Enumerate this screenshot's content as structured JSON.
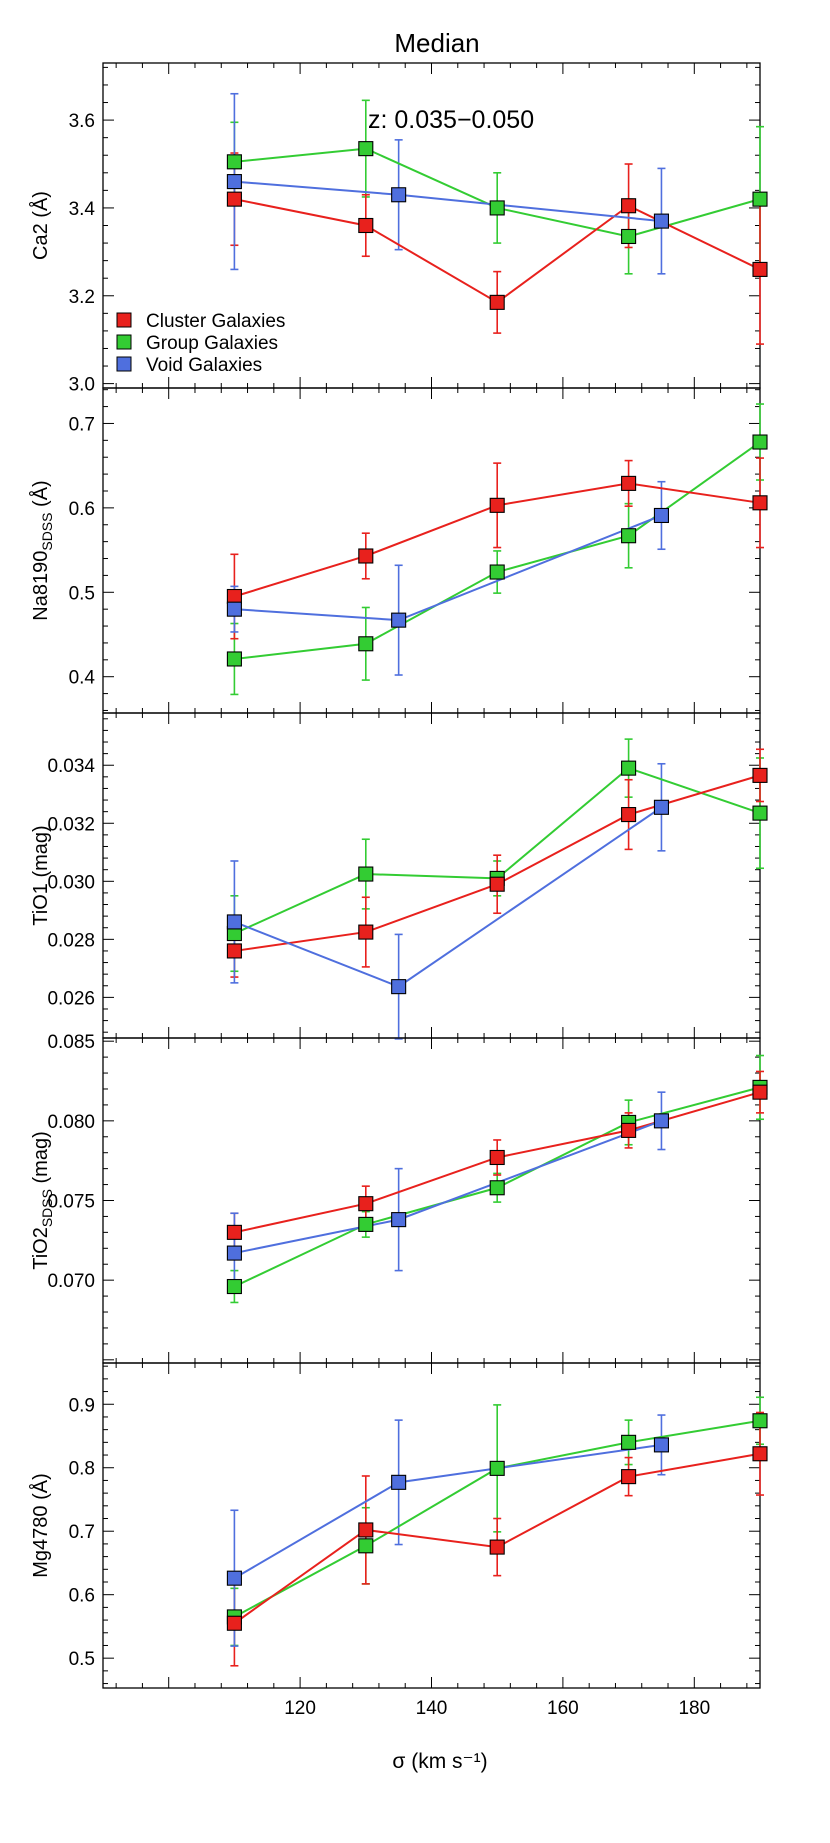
{
  "figure": {
    "title": "Median",
    "annotation": "z: 0.035−0.050",
    "xlabel": "σ (km s⁻¹)"
  },
  "legend": {
    "placement": "lower-left of top panel",
    "items": [
      {
        "label": "Cluster Galaxies",
        "color": "#e8211d"
      },
      {
        "label": "Group Galaxies",
        "color": "#33cc33"
      },
      {
        "label": "Void Galaxies",
        "color": "#4f6fde"
      }
    ]
  },
  "colors": {
    "cluster": "#e8211d",
    "group": "#33cc33",
    "void": "#4f6fde",
    "axis": "#000000"
  },
  "chart_data": [
    {
      "type": "line",
      "ylabel": "Ca2 (Å)",
      "xlim": [
        90,
        190
      ],
      "ylim": [
        2.99,
        3.73
      ],
      "yticks": [
        "3.0",
        "3.2",
        "3.4",
        "3.6"
      ],
      "xticks": [
        "120",
        "140",
        "160",
        "180"
      ],
      "show_xtick_labels": false,
      "series": [
        {
          "name": "Cluster Galaxies",
          "key": "cluster",
          "x": [
            110,
            130,
            150,
            170,
            190
          ],
          "y": [
            3.42,
            3.36,
            3.185,
            3.405,
            3.26
          ],
          "err": [
            0.105,
            0.07,
            0.07,
            0.095,
            0.17
          ]
        },
        {
          "name": "Group Galaxies",
          "key": "group",
          "x": [
            110,
            130,
            150,
            170,
            190
          ],
          "y": [
            3.505,
            3.535,
            3.4,
            3.335,
            3.42
          ],
          "err": [
            0.09,
            0.11,
            0.08,
            0.085,
            0.165
          ]
        },
        {
          "name": "Void Galaxies",
          "key": "void",
          "x": [
            110,
            135,
            175
          ],
          "y": [
            3.46,
            3.43,
            3.37
          ],
          "err": [
            0.2,
            0.125,
            0.12
          ]
        }
      ]
    },
    {
      "type": "line",
      "ylabel": "Na8190SDSS (Å)",
      "ylabel_main": "Na8190",
      "ylabel_sub": "SDSS",
      "ylabel_unit": " (Å)",
      "xlim": [
        90,
        190
      ],
      "ylim": [
        0.357,
        0.742
      ],
      "yticks": [
        "0.4",
        "0.5",
        "0.6",
        "0.7"
      ],
      "xticks": [
        "120",
        "140",
        "160",
        "180"
      ],
      "show_xtick_labels": false,
      "series": [
        {
          "name": "Cluster Galaxies",
          "key": "cluster",
          "x": [
            110,
            130,
            150,
            170,
            190
          ],
          "y": [
            0.495,
            0.543,
            0.603,
            0.629,
            0.606
          ],
          "err": [
            0.05,
            0.027,
            0.05,
            0.027,
            0.053
          ]
        },
        {
          "name": "Group Galaxies",
          "key": "group",
          "x": [
            110,
            130,
            150,
            170,
            190
          ],
          "y": [
            0.421,
            0.439,
            0.524,
            0.567,
            0.678
          ],
          "err": [
            0.042,
            0.043,
            0.025,
            0.038,
            0.045
          ]
        },
        {
          "name": "Void Galaxies",
          "key": "void",
          "x": [
            110,
            135,
            175
          ],
          "y": [
            0.48,
            0.467,
            0.591
          ],
          "err": [
            0.027,
            0.065,
            0.04
          ]
        }
      ]
    },
    {
      "type": "line",
      "ylabel": "TiO1 (mag)",
      "xlim": [
        90,
        190
      ],
      "ylim": [
        0.0246,
        0.0358
      ],
      "yticks": [
        "0.026",
        "0.028",
        "0.030",
        "0.032",
        "0.034"
      ],
      "xticks": [
        "120",
        "140",
        "160",
        "180"
      ],
      "show_xtick_labels": false,
      "series": [
        {
          "name": "Cluster Galaxies",
          "key": "cluster",
          "x": [
            110,
            130,
            150,
            170,
            190
          ],
          "y": [
            0.0276,
            0.02825,
            0.0299,
            0.0323,
            0.03365
          ],
          "err": [
            0.0009,
            0.0012,
            0.001,
            0.0012,
            0.0009
          ]
        },
        {
          "name": "Group Galaxies",
          "key": "group",
          "x": [
            110,
            130,
            150,
            170,
            190
          ],
          "y": [
            0.0282,
            0.03025,
            0.0301,
            0.0339,
            0.03235
          ],
          "err": [
            0.0013,
            0.0012,
            0.0006,
            0.001,
            0.0019
          ]
        },
        {
          "name": "Void Galaxies",
          "key": "void",
          "x": [
            110,
            135,
            175
          ],
          "y": [
            0.0286,
            0.02637,
            0.03255
          ],
          "err": [
            0.0021,
            0.0018,
            0.0015
          ]
        }
      ]
    },
    {
      "type": "line",
      "ylabel": "TiO2SDSS (mag)",
      "ylabel_main": "TiO2",
      "ylabel_sub": "SDSS",
      "ylabel_unit": " (mag)",
      "xlim": [
        90,
        190
      ],
      "ylim": [
        0.0648,
        0.0852
      ],
      "yticks": [
        "0.070",
        "0.075",
        "0.080",
        "0.085"
      ],
      "xticks": [
        "120",
        "140",
        "160",
        "180"
      ],
      "show_xtick_labels": false,
      "series": [
        {
          "name": "Cluster Galaxies",
          "key": "cluster",
          "x": [
            110,
            130,
            150,
            170,
            190
          ],
          "y": [
            0.073,
            0.0748,
            0.0777,
            0.0794,
            0.0818
          ],
          "err": [
            0.0012,
            0.0011,
            0.0011,
            0.0011,
            0.0013
          ]
        },
        {
          "name": "Group Galaxies",
          "key": "group",
          "x": [
            110,
            130,
            150,
            170,
            190
          ],
          "y": [
            0.0696,
            0.0735,
            0.0758,
            0.0799,
            0.0821
          ],
          "err": [
            0.001,
            0.0008,
            0.0009,
            0.0014,
            0.002
          ]
        },
        {
          "name": "Void Galaxies",
          "key": "void",
          "x": [
            110,
            135,
            175
          ],
          "y": [
            0.0717,
            0.0738,
            0.08
          ],
          "err": [
            0.0025,
            0.0032,
            0.0018
          ]
        }
      ]
    },
    {
      "type": "line",
      "ylabel": "Mg4780 (Å)",
      "xlim": [
        90,
        190
      ],
      "ylim": [
        0.453,
        0.965
      ],
      "yticks": [
        "0.5",
        "0.6",
        "0.7",
        "0.8",
        "0.9"
      ],
      "xticks": [
        "120",
        "140",
        "160",
        "180"
      ],
      "show_xtick_labels": true,
      "series": [
        {
          "name": "Cluster Galaxies",
          "key": "cluster",
          "x": [
            110,
            130,
            150,
            170,
            190
          ],
          "y": [
            0.555,
            0.702,
            0.675,
            0.786,
            0.822
          ],
          "err": [
            0.067,
            0.085,
            0.045,
            0.03,
            0.065
          ]
        },
        {
          "name": "Group Galaxies",
          "key": "group",
          "x": [
            110,
            130,
            150,
            170,
            190
          ],
          "y": [
            0.565,
            0.677,
            0.799,
            0.84,
            0.874
          ],
          "err": [
            0.045,
            0.06,
            0.1,
            0.035,
            0.037
          ]
        },
        {
          "name": "Void Galaxies",
          "key": "void",
          "x": [
            110,
            135,
            175
          ],
          "y": [
            0.626,
            0.777,
            0.836
          ],
          "err": [
            0.107,
            0.098,
            0.047
          ]
        }
      ]
    }
  ]
}
